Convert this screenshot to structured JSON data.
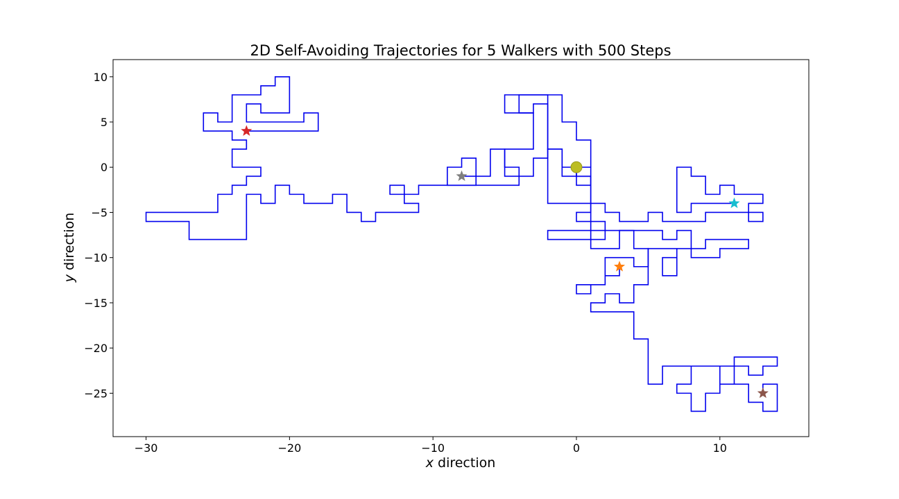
{
  "chart_data": {
    "type": "line",
    "title": "2D Self-Avoiding Trajectories for 5 Walkers with 500 Steps",
    "xlabel_var": "x",
    "xlabel_rest": " direction",
    "ylabel_var": "y",
    "ylabel_rest": " direction",
    "xlim": [
      -32.3,
      16.2
    ],
    "ylim": [
      -29.8,
      11.9
    ],
    "x_ticks": [
      -30,
      -20,
      -10,
      0,
      10
    ],
    "x_tick_labels": [
      "−30",
      "−20",
      "−10",
      "0",
      "10"
    ],
    "y_ticks": [
      10,
      5,
      0,
      -5,
      -10,
      -15,
      -20,
      -25
    ],
    "y_tick_labels": [
      "10",
      "5",
      "0",
      "−5",
      "−10",
      "−15",
      "−20",
      "−25"
    ],
    "grid": false,
    "legend": "none",
    "line_color": "#0000ee",
    "origin": {
      "x": 0,
      "y": 0,
      "color": "#bcbd22"
    },
    "series": [
      {
        "color": "#0000ee",
        "end_color": "#d62728",
        "points": [
          [
            0,
            0
          ],
          [
            -1,
            0
          ],
          [
            -1,
            2
          ],
          [
            -2,
            2
          ],
          [
            -2,
            8
          ],
          [
            -5,
            8
          ],
          [
            -5,
            6
          ],
          [
            -3,
            6
          ],
          [
            -3,
            2
          ],
          [
            -5,
            2
          ],
          [
            -5,
            0
          ],
          [
            -4,
            0
          ],
          [
            -4,
            -2
          ],
          [
            -11,
            -2
          ],
          [
            -11,
            -3
          ],
          [
            -13,
            -3
          ],
          [
            -13,
            -2
          ],
          [
            -12,
            -2
          ],
          [
            -12,
            -4
          ],
          [
            -11,
            -4
          ],
          [
            -11,
            -5
          ],
          [
            -14,
            -5
          ],
          [
            -14,
            -6
          ],
          [
            -15,
            -6
          ],
          [
            -15,
            -5
          ],
          [
            -16,
            -5
          ],
          [
            -16,
            -3
          ],
          [
            -17,
            -3
          ],
          [
            -17,
            -4
          ],
          [
            -19,
            -4
          ],
          [
            -19,
            -3
          ],
          [
            -20,
            -3
          ],
          [
            -20,
            -2
          ],
          [
            -21,
            -2
          ],
          [
            -21,
            -4
          ],
          [
            -22,
            -4
          ],
          [
            -22,
            -3
          ],
          [
            -23,
            -3
          ],
          [
            -23,
            -8
          ],
          [
            -27,
            -8
          ],
          [
            -27,
            -6
          ],
          [
            -30,
            -6
          ],
          [
            -30,
            -5
          ],
          [
            -25,
            -5
          ],
          [
            -25,
            -3
          ],
          [
            -24,
            -3
          ],
          [
            -24,
            -2
          ],
          [
            -23,
            -2
          ],
          [
            -23,
            -1
          ],
          [
            -22,
            -1
          ],
          [
            -22,
            0
          ],
          [
            -24,
            0
          ],
          [
            -24,
            2
          ],
          [
            -23,
            2
          ],
          [
            -23,
            3
          ],
          [
            -24,
            3
          ],
          [
            -24,
            4
          ],
          [
            -26,
            4
          ],
          [
            -26,
            6
          ],
          [
            -25,
            6
          ],
          [
            -25,
            5
          ],
          [
            -24,
            5
          ],
          [
            -24,
            8
          ],
          [
            -22,
            8
          ],
          [
            -22,
            9
          ],
          [
            -21,
            9
          ],
          [
            -21,
            10
          ],
          [
            -20,
            10
          ],
          [
            -20,
            6
          ],
          [
            -22,
            6
          ],
          [
            -22,
            7
          ],
          [
            -23,
            7
          ],
          [
            -23,
            5
          ],
          [
            -19,
            5
          ],
          [
            -19,
            6
          ],
          [
            -18,
            6
          ],
          [
            -18,
            4
          ],
          [
            -23,
            4
          ]
        ]
      },
      {
        "color": "#0000ee",
        "end_color": "#7f7f7f",
        "points": [
          [
            0,
            0
          ],
          [
            0,
            -2
          ],
          [
            1,
            -2
          ],
          [
            1,
            -1
          ],
          [
            -1,
            -1
          ],
          [
            -1,
            2
          ],
          [
            -2,
            2
          ],
          [
            -2,
            1
          ],
          [
            -3,
            1
          ],
          [
            -3,
            -1
          ],
          [
            -5,
            -1
          ],
          [
            -5,
            2
          ],
          [
            -6,
            2
          ],
          [
            -6,
            -1
          ],
          [
            -7,
            -1
          ],
          [
            -7,
            1
          ],
          [
            -8,
            1
          ],
          [
            -8,
            0
          ],
          [
            -9,
            0
          ],
          [
            -9,
            -2
          ],
          [
            -7,
            -2
          ],
          [
            -7,
            -1
          ],
          [
            -8,
            -1
          ]
        ]
      },
      {
        "color": "#0000ee",
        "end_color": "#17becf",
        "points": [
          [
            0,
            0
          ],
          [
            1,
            0
          ],
          [
            1,
            3
          ],
          [
            0,
            3
          ],
          [
            0,
            5
          ],
          [
            -1,
            5
          ],
          [
            -1,
            8
          ],
          [
            -4,
            8
          ],
          [
            -4,
            6
          ],
          [
            -3,
            6
          ],
          [
            -3,
            7
          ],
          [
            -2,
            7
          ],
          [
            -2,
            -4
          ],
          [
            2,
            -4
          ],
          [
            2,
            -5
          ],
          [
            3,
            -5
          ],
          [
            3,
            -6
          ],
          [
            5,
            -6
          ],
          [
            5,
            -5
          ],
          [
            6,
            -5
          ],
          [
            6,
            -6
          ],
          [
            9,
            -6
          ],
          [
            9,
            -5
          ],
          [
            12,
            -5
          ],
          [
            12,
            -6
          ],
          [
            13,
            -6
          ],
          [
            13,
            -5
          ],
          [
            12,
            -5
          ],
          [
            12,
            -4
          ],
          [
            13,
            -4
          ],
          [
            13,
            -3
          ],
          [
            11,
            -3
          ],
          [
            11,
            -2
          ],
          [
            10,
            -2
          ],
          [
            10,
            -3
          ],
          [
            9,
            -3
          ],
          [
            9,
            -1
          ],
          [
            8,
            -1
          ],
          [
            8,
            0
          ],
          [
            7,
            0
          ],
          [
            7,
            -5
          ],
          [
            8,
            -5
          ],
          [
            8,
            -4
          ],
          [
            11,
            -4
          ]
        ]
      },
      {
        "color": "#0000ee",
        "end_color": "#ff7f0e",
        "points": [
          [
            0,
            0
          ],
          [
            0,
            -1
          ],
          [
            1,
            -1
          ],
          [
            1,
            -5
          ],
          [
            0,
            -5
          ],
          [
            0,
            -6
          ],
          [
            2,
            -6
          ],
          [
            2,
            -8
          ],
          [
            -2,
            -8
          ],
          [
            -2,
            -7
          ],
          [
            6,
            -7
          ],
          [
            6,
            -8
          ],
          [
            7,
            -8
          ],
          [
            7,
            -7
          ],
          [
            8,
            -7
          ],
          [
            8,
            -9
          ],
          [
            9,
            -9
          ],
          [
            9,
            -8
          ],
          [
            12,
            -8
          ],
          [
            12,
            -9
          ],
          [
            10,
            -9
          ],
          [
            10,
            -10
          ],
          [
            8,
            -10
          ],
          [
            8,
            -9
          ],
          [
            7,
            -9
          ],
          [
            7,
            -12
          ],
          [
            6,
            -12
          ],
          [
            6,
            -10
          ],
          [
            7,
            -10
          ],
          [
            7,
            -9
          ],
          [
            5,
            -9
          ],
          [
            5,
            -11
          ],
          [
            4,
            -11
          ],
          [
            4,
            -10
          ],
          [
            2,
            -10
          ],
          [
            2,
            -13
          ],
          [
            0,
            -13
          ],
          [
            0,
            -14
          ],
          [
            1,
            -14
          ],
          [
            1,
            -13
          ],
          [
            2,
            -13
          ],
          [
            2,
            -12
          ],
          [
            3,
            -12
          ],
          [
            3,
            -11
          ]
        ]
      },
      {
        "color": "#0000ee",
        "end_color": "#8c564b",
        "points": [
          [
            0,
            0
          ],
          [
            1,
            0
          ],
          [
            1,
            -9
          ],
          [
            3,
            -9
          ],
          [
            3,
            -7
          ],
          [
            4,
            -7
          ],
          [
            4,
            -9
          ],
          [
            5,
            -9
          ],
          [
            5,
            -13
          ],
          [
            4,
            -13
          ],
          [
            4,
            -15
          ],
          [
            3,
            -15
          ],
          [
            3,
            -14
          ],
          [
            2,
            -14
          ],
          [
            2,
            -15
          ],
          [
            1,
            -15
          ],
          [
            1,
            -16
          ],
          [
            4,
            -16
          ],
          [
            4,
            -19
          ],
          [
            5,
            -19
          ],
          [
            5,
            -24
          ],
          [
            6,
            -24
          ],
          [
            6,
            -22
          ],
          [
            10,
            -22
          ],
          [
            10,
            -24
          ],
          [
            11,
            -24
          ],
          [
            11,
            -21
          ],
          [
            14,
            -21
          ],
          [
            14,
            -22
          ],
          [
            13,
            -22
          ],
          [
            13,
            -23
          ],
          [
            12,
            -23
          ],
          [
            12,
            -22
          ],
          [
            8,
            -22
          ],
          [
            8,
            -24
          ],
          [
            7,
            -24
          ],
          [
            7,
            -25
          ],
          [
            8,
            -25
          ],
          [
            8,
            -27
          ],
          [
            9,
            -27
          ],
          [
            9,
            -25
          ],
          [
            10,
            -25
          ],
          [
            10,
            -24
          ],
          [
            12,
            -24
          ],
          [
            12,
            -26
          ],
          [
            13,
            -26
          ],
          [
            13,
            -27
          ],
          [
            14,
            -27
          ],
          [
            14,
            -24
          ],
          [
            13,
            -24
          ],
          [
            13,
            -25
          ]
        ]
      }
    ]
  }
}
